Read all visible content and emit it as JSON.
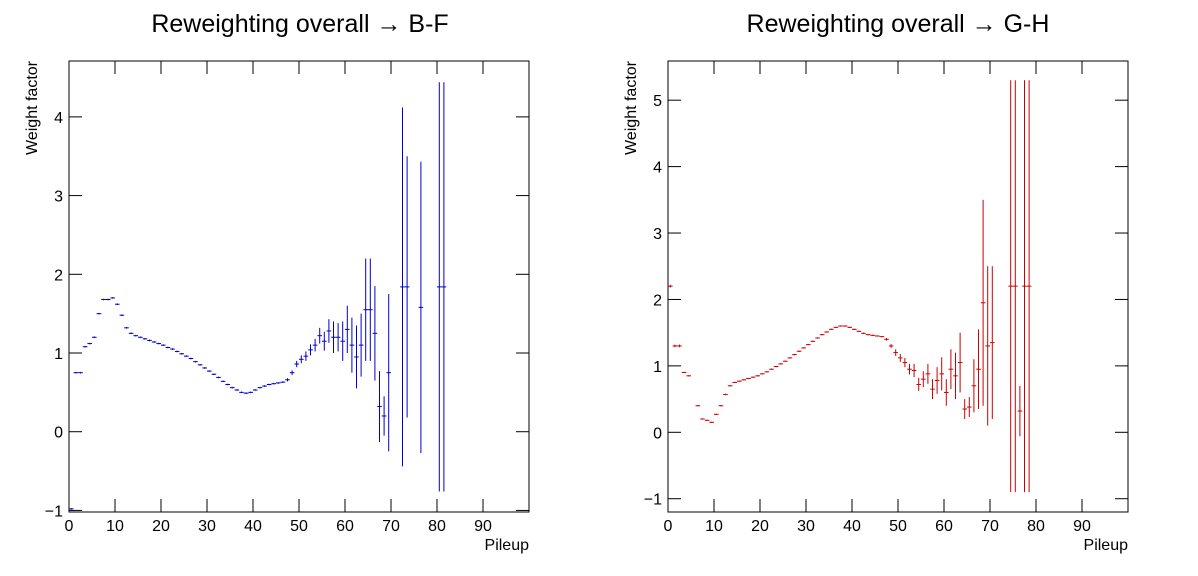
{
  "chart_data": [
    {
      "type": "errorbar",
      "title": "Reweighting overall → B-F",
      "x_label": "Pileup",
      "y_label": "Weight factor",
      "color": "#0000cc",
      "x": [
        0.5,
        1.5,
        2.5,
        3.5,
        4.5,
        5.5,
        6.5,
        7.5,
        8.5,
        9.5,
        10.5,
        11.5,
        12.5,
        13.5,
        14.5,
        15.5,
        16.5,
        17.5,
        18.5,
        19.5,
        20.5,
        21.5,
        22.5,
        23.5,
        24.5,
        25.5,
        26.5,
        27.5,
        28.5,
        29.5,
        30.5,
        31.5,
        32.5,
        33.5,
        34.5,
        35.5,
        36.5,
        37.5,
        38.5,
        39.5,
        40.5,
        41.5,
        42.5,
        43.5,
        44.5,
        45.5,
        46.5,
        47.5,
        48.5,
        49.5,
        50.5,
        51.5,
        52.5,
        53.5,
        54.5,
        55.5,
        56.5,
        57.5,
        58.5,
        59.5,
        60.5,
        61.5,
        62.5,
        63.5,
        64.5,
        65.5,
        66.5,
        67.5,
        68.5,
        69.5,
        72.5,
        73.5,
        76.5,
        80.5,
        81.5
      ],
      "values": [
        -0.98,
        0.75,
        0.75,
        1.08,
        1.12,
        1.2,
        1.5,
        1.68,
        1.68,
        1.7,
        1.62,
        1.48,
        1.32,
        1.25,
        1.22,
        1.2,
        1.18,
        1.16,
        1.14,
        1.12,
        1.1,
        1.07,
        1.05,
        1.02,
        0.99,
        0.96,
        0.93,
        0.89,
        0.85,
        0.81,
        0.77,
        0.73,
        0.69,
        0.64,
        0.6,
        0.56,
        0.53,
        0.5,
        0.49,
        0.5,
        0.53,
        0.56,
        0.58,
        0.6,
        0.61,
        0.62,
        0.63,
        0.66,
        0.75,
        0.86,
        0.92,
        0.96,
        1.04,
        1.1,
        1.22,
        1.15,
        1.28,
        1.2,
        1.2,
        1.15,
        1.3,
        1.1,
        0.95,
        1.1,
        1.55,
        1.55,
        1.25,
        0.32,
        0.2,
        0.75,
        1.84,
        1.84,
        1.58,
        1.84,
        1.84
      ],
      "errors": [
        0.01,
        0.01,
        0.01,
        0.01,
        0.01,
        0.01,
        0.01,
        0.01,
        0.01,
        0.01,
        0.01,
        0.01,
        0.01,
        0.01,
        0.01,
        0.01,
        0.01,
        0.01,
        0.01,
        0.01,
        0.01,
        0.01,
        0.01,
        0.01,
        0.01,
        0.01,
        0.01,
        0.01,
        0.01,
        0.01,
        0.01,
        0.01,
        0.01,
        0.01,
        0.01,
        0.01,
        0.01,
        0.01,
        0.01,
        0.01,
        0.01,
        0.01,
        0.01,
        0.01,
        0.01,
        0.01,
        0.01,
        0.02,
        0.03,
        0.04,
        0.05,
        0.06,
        0.07,
        0.08,
        0.1,
        0.12,
        0.15,
        0.2,
        0.18,
        0.25,
        0.3,
        0.35,
        0.4,
        0.4,
        0.65,
        0.65,
        0.6,
        0.45,
        0.25,
        1.0,
        2.28,
        1.66,
        1.85,
        2.6,
        2.6
      ],
      "xlim": [
        0,
        100
      ],
      "ylim": [
        -1.02,
        4.71
      ],
      "xticks": [
        0,
        10,
        20,
        30,
        40,
        50,
        60,
        70,
        80,
        90
      ],
      "yticks": [
        {
          "value": -1,
          "label": "−1"
        },
        0,
        1,
        2,
        3,
        4
      ]
    },
    {
      "type": "errorbar",
      "title": "Reweighting overall → G-H",
      "x_label": "Pileup",
      "y_label": "Weight factor",
      "color": "#cc0000",
      "x": [
        0.5,
        1.5,
        2.5,
        3.5,
        4.5,
        6.5,
        7.5,
        8.5,
        9.5,
        10.5,
        11.5,
        12.5,
        13.5,
        14.5,
        15.5,
        16.5,
        17.5,
        18.5,
        19.5,
        20.5,
        21.5,
        22.5,
        23.5,
        24.5,
        25.5,
        26.5,
        27.5,
        28.5,
        29.5,
        30.5,
        31.5,
        32.5,
        33.5,
        34.5,
        35.5,
        36.5,
        37.5,
        38.5,
        39.5,
        40.5,
        41.5,
        42.5,
        43.5,
        44.5,
        45.5,
        46.5,
        47.5,
        48.5,
        49.5,
        50.5,
        51.5,
        52.5,
        53.5,
        54.5,
        55.5,
        56.5,
        57.5,
        58.5,
        59.5,
        60.5,
        61.5,
        62.5,
        63.5,
        64.5,
        65.5,
        66.5,
        67.5,
        68.5,
        69.5,
        70.5,
        74.5,
        75.5,
        76.5,
        77.5,
        78.5
      ],
      "values": [
        2.2,
        1.3,
        1.3,
        0.9,
        0.85,
        0.4,
        0.2,
        0.18,
        0.15,
        0.27,
        0.4,
        0.57,
        0.7,
        0.75,
        0.77,
        0.79,
        0.81,
        0.83,
        0.85,
        0.88,
        0.91,
        0.95,
        0.99,
        1.03,
        1.07,
        1.12,
        1.17,
        1.22,
        1.27,
        1.32,
        1.37,
        1.42,
        1.47,
        1.51,
        1.55,
        1.58,
        1.6,
        1.6,
        1.58,
        1.55,
        1.52,
        1.49,
        1.47,
        1.46,
        1.45,
        1.44,
        1.4,
        1.3,
        1.2,
        1.12,
        1.05,
        0.95,
        0.93,
        0.72,
        0.8,
        0.88,
        0.65,
        0.78,
        0.88,
        0.6,
        0.95,
        0.85,
        1.05,
        0.35,
        0.38,
        0.7,
        0.95,
        1.95,
        1.3,
        1.35,
        2.2,
        2.2,
        0.32,
        2.2,
        2.2
      ],
      "errors": [
        0.02,
        0.02,
        0.02,
        0.01,
        0.01,
        0.01,
        0.01,
        0.01,
        0.01,
        0.01,
        0.01,
        0.01,
        0.01,
        0.01,
        0.01,
        0.01,
        0.01,
        0.01,
        0.01,
        0.01,
        0.01,
        0.01,
        0.01,
        0.01,
        0.01,
        0.01,
        0.01,
        0.01,
        0.01,
        0.01,
        0.01,
        0.01,
        0.01,
        0.01,
        0.01,
        0.01,
        0.01,
        0.01,
        0.01,
        0.01,
        0.01,
        0.01,
        0.01,
        0.01,
        0.01,
        0.01,
        0.02,
        0.03,
        0.05,
        0.06,
        0.07,
        0.08,
        0.1,
        0.1,
        0.12,
        0.15,
        0.15,
        0.2,
        0.25,
        0.2,
        0.3,
        0.35,
        0.45,
        0.15,
        0.15,
        0.4,
        0.6,
        1.55,
        1.2,
        1.15,
        3.1,
        3.1,
        0.38,
        3.1,
        3.1
      ],
      "xlim": [
        0,
        100
      ],
      "ylim": [
        -1.2,
        5.59
      ],
      "xticks": [
        0,
        10,
        20,
        30,
        40,
        50,
        60,
        70,
        80,
        90
      ],
      "yticks": [
        {
          "value": -1,
          "label": "−1"
        },
        0,
        1,
        2,
        3,
        4,
        5
      ]
    }
  ]
}
